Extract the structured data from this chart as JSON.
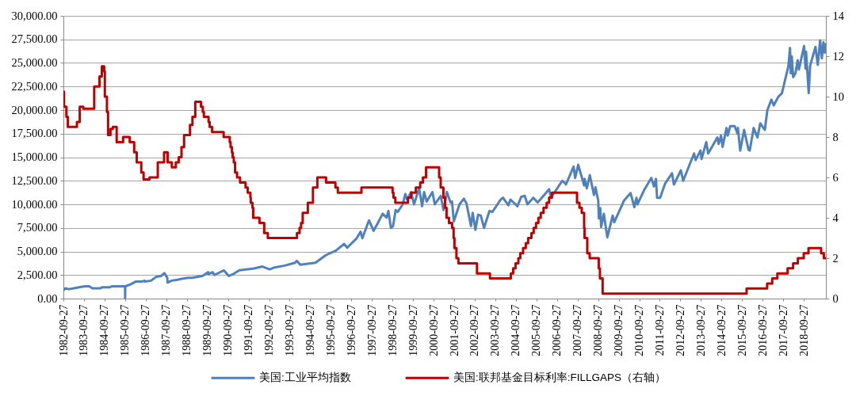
{
  "chart_data": {
    "type": "line",
    "xlim": [
      "1982-09-27",
      "2019-10-25"
    ],
    "xticks": [
      "1982-09-27",
      "1983-09-27",
      "1984-09-27",
      "1985-09-27",
      "1986-09-27",
      "1987-09-27",
      "1988-09-27",
      "1989-09-27",
      "1990-09-27",
      "1991-09-27",
      "1992-09-27",
      "1993-09-27",
      "1994-09-27",
      "1995-09-27",
      "1996-09-27",
      "1997-09-27",
      "1998-09-27",
      "1999-09-27",
      "2000-09-27",
      "2001-09-27",
      "2002-09-27",
      "2003-09-27",
      "2004-09-27",
      "2005-09-27",
      "2006-09-27",
      "2007-09-27",
      "2008-09-27",
      "2009-09-27",
      "2010-09-27",
      "2011-09-27",
      "2012-09-27",
      "2013-09-27",
      "2014-09-27",
      "2015-09-27",
      "2016-09-27",
      "2017-09-27",
      "2018-09-27"
    ],
    "ylim": [
      0,
      30000
    ],
    "yticks": [
      {
        "value": 0,
        "label": "0.00"
      },
      {
        "value": 2500,
        "label": "2,500.00"
      },
      {
        "value": 5000,
        "label": "5,000.00"
      },
      {
        "value": 7500,
        "label": "7,500.00"
      },
      {
        "value": 10000,
        "label": "10,000.00"
      },
      {
        "value": 12500,
        "label": "12,500.00"
      },
      {
        "value": 15000,
        "label": "15,000.00"
      },
      {
        "value": 17500,
        "label": "17,500.00"
      },
      {
        "value": 20000,
        "label": "20,000.00"
      },
      {
        "value": 22500,
        "label": "22,500.00"
      },
      {
        "value": 25000,
        "label": "25,000.00"
      },
      {
        "value": 27500,
        "label": "27,500.00"
      },
      {
        "value": 30000,
        "label": "30,000.00"
      }
    ],
    "y2lim": [
      0,
      14
    ],
    "y2ticks": [
      0,
      2,
      4,
      6,
      8,
      10,
      12,
      14
    ],
    "grid": "y",
    "legend": "bottom",
    "series": [
      {
        "name": "美国:工业平均指数",
        "color": "#4f81bd",
        "type": "line",
        "x": [
          "1982-09-27",
          "1982-11-03",
          "1982-12-31",
          "1983-03-31",
          "1983-06-30",
          "1983-10-10",
          "1983-12-30",
          "1984-02-22",
          "1984-05-31",
          "1984-07-24",
          "1984-08-03",
          "1984-11-06",
          "1984-12-31",
          "1985-01-31",
          "1985-06-28",
          "1985-09-26",
          "1985-09-27",
          "1985-09-30",
          "1985-12-31",
          "1986-03-31",
          "1986-07-15",
          "1986-09-04",
          "1986-09-12",
          "1986-12-31",
          "1987-03-31",
          "1987-06-30",
          "1987-08-25",
          "1987-10-16",
          "1987-10-19",
          "1987-12-31",
          "1988-04-14",
          "1988-06-30",
          "1988-10-21",
          "1988-12-30",
          "1989-06-30",
          "1989-10-09",
          "1989-10-13",
          "1989-12-29",
          "1990-01-30",
          "1990-07-16",
          "1990-10-11",
          "1990-12-31",
          "1991-04-17",
          "1991-12-31",
          "1992-06-01",
          "1992-10-09",
          "1992-12-31",
          "1993-06-30",
          "1993-12-31",
          "1994-01-31",
          "1994-04-04",
          "1994-12-30",
          "1995-06-30",
          "1995-12-29",
          "1996-05-22",
          "1996-07-16",
          "1996-12-31",
          "1997-03-11",
          "1997-04-11",
          "1997-08-06",
          "1997-10-27",
          "1997-12-31",
          "1998-04-06",
          "1998-06-15",
          "1998-07-17",
          "1998-08-31",
          "1998-10-08",
          "1998-11-23",
          "1998-12-31",
          "1999-03-29",
          "1999-05-13",
          "1999-06-14",
          "1999-08-25",
          "1999-10-15",
          "2000-01-14",
          "2000-03-07",
          "2000-04-11",
          "2000-05-26",
          "2000-09-06",
          "2000-10-18",
          "2001-01-31",
          "2001-03-22",
          "2001-05-21",
          "2001-07-24",
          "2001-08-20",
          "2001-09-21",
          "2001-12-31",
          "2002-03-19",
          "2002-05-03",
          "2002-07-23",
          "2002-08-22",
          "2002-10-09",
          "2002-11-27",
          "2003-01-14",
          "2003-03-11",
          "2003-06-17",
          "2003-08-08",
          "2003-12-31",
          "2004-02-11",
          "2004-05-17",
          "2004-06-23",
          "2004-10-25",
          "2004-12-31",
          "2005-03-04",
          "2005-04-20",
          "2005-08-02",
          "2005-10-21",
          "2005-12-30",
          "2006-05-10",
          "2006-06-13",
          "2006-12-29",
          "2007-02-27",
          "2007-03-05",
          "2007-07-19",
          "2007-08-16",
          "2007-10-09",
          "2008-01-22",
          "2008-02-01",
          "2008-03-10",
          "2008-05-02",
          "2008-07-15",
          "2008-08-11",
          "2008-09-29",
          "2008-10-10",
          "2008-11-04",
          "2008-11-20",
          "2009-01-06",
          "2009-03-09",
          "2009-06-12",
          "2009-07-10",
          "2009-12-31",
          "2010-04-26",
          "2010-07-02",
          "2010-08-09",
          "2010-08-26",
          "2010-12-31",
          "2011-04-29",
          "2011-06-15",
          "2011-07-21",
          "2011-08-10",
          "2011-10-03",
          "2011-12-30",
          "2012-05-01",
          "2012-06-04",
          "2012-10-05",
          "2012-11-15",
          "2013-05-28",
          "2013-06-24",
          "2013-09-18",
          "2013-10-08",
          "2013-12-31",
          "2014-02-03",
          "2014-07-16",
          "2014-08-07",
          "2014-09-19",
          "2014-10-16",
          "2014-12-26",
          "2015-01-15",
          "2015-03-02",
          "2015-05-19",
          "2015-07-08",
          "2015-07-16",
          "2015-08-25",
          "2015-11-03",
          "2016-01-20",
          "2016-02-11",
          "2016-04-20",
          "2016-06-27",
          "2016-08-15",
          "2016-11-04",
          "2016-12-20",
          "2017-03-01",
          "2017-04-13",
          "2017-06-30",
          "2017-09-05",
          "2017-12-29",
          "2018-01-26",
          "2018-02-08",
          "2018-02-26",
          "2018-03-23",
          "2018-05-03",
          "2018-06-11",
          "2018-07-02",
          "2018-10-03",
          "2018-10-29",
          "2018-11-07",
          "2018-12-24",
          "2019-01-18",
          "2019-04-23",
          "2019-06-03",
          "2019-07-15",
          "2019-08-14",
          "2019-09-12",
          "2019-10-02",
          "2019-10-25"
        ],
        "values": [
          900,
          1100,
          1000,
          1100,
          1200,
          1300,
          1300,
          1100,
          1100,
          1100,
          1200,
          1200,
          1200,
          1300,
          1300,
          1300,
          0,
          1300,
          1500,
          1800,
          1800,
          1900,
          1800,
          1900,
          2300,
          2400,
          2700,
          2200,
          1700,
          1900,
          2000,
          2100,
          2200,
          2200,
          2400,
          2800,
          2600,
          2800,
          2500,
          3000,
          2400,
          2600,
          3000,
          3200,
          3400,
          3100,
          3300,
          3500,
          3800,
          4000,
          3600,
          3800,
          4600,
          5100,
          5800,
          5400,
          6400,
          7100,
          6400,
          8300,
          7200,
          7900,
          9000,
          8600,
          9300,
          7500,
          7700,
          9400,
          9200,
          10000,
          11100,
          10500,
          11300,
          10000,
          11700,
          9800,
          11300,
          10300,
          11300,
          10000,
          10900,
          9400,
          11300,
          10200,
          10300,
          8200,
          10000,
          10600,
          10100,
          7700,
          9100,
          7300,
          8900,
          8800,
          7500,
          9300,
          9200,
          10500,
          10700,
          9900,
          10500,
          9800,
          10800,
          10900,
          10000,
          10700,
          10200,
          10700,
          11600,
          10700,
          12500,
          12200,
          12100,
          14000,
          12800,
          14200,
          12000,
          12700,
          11700,
          13100,
          11000,
          11800,
          10400,
          8500,
          9600,
          7600,
          9000,
          6500,
          8800,
          8100,
          10400,
          11200,
          9700,
          10700,
          10000,
          11600,
          12800,
          11900,
          12700,
          10700,
          10700,
          12200,
          13300,
          12100,
          13600,
          12500,
          15400,
          14700,
          15700,
          14800,
          16600,
          15400,
          17100,
          16400,
          17300,
          16100,
          18100,
          17300,
          18300,
          18300,
          17500,
          18100,
          15700,
          17900,
          15800,
          15700,
          18100,
          17100,
          18600,
          17900,
          20000,
          21100,
          20500,
          21400,
          21800,
          24700,
          26600,
          23900,
          25700,
          23500,
          23900,
          25300,
          24300,
          26800,
          24400,
          26200,
          21800,
          24700,
          26700,
          24800,
          27400,
          25500,
          27200,
          26100,
          27000
        ]
      },
      {
        "name": "美国:联邦基金目标利率:FILLGAPS（右轴）",
        "color": "#c00000",
        "type": "step",
        "axis": "y2",
        "x": [
          "1982-09-27",
          "1982-10-08",
          "1982-11-19",
          "1982-12-14",
          "1983-05-25",
          "1983-07-14",
          "1983-09-15",
          "1984-03-27",
          "1984-06-29",
          "1984-08-09",
          "1984-09-20",
          "1984-10-02",
          "1984-11-08",
          "1984-11-28",
          "1985-01-10",
          "1985-02-20",
          "1985-04-30",
          "1985-08-22",
          "1985-12-18",
          "1986-03-07",
          "1986-04-21",
          "1986-07-11",
          "1986-08-21",
          "1986-12-04",
          "1987-04-30",
          "1987-08-20",
          "1987-10-22",
          "1988-01-05",
          "1988-03-15",
          "1988-05-06",
          "1988-06-24",
          "1988-08-09",
          "1988-11-22",
          "1989-01-05",
          "1989-02-24",
          "1989-06-06",
          "1989-07-07",
          "1989-07-27",
          "1989-10-18",
          "1989-11-06",
          "1989-12-20",
          "1990-07-13",
          "1990-10-29",
          "1990-11-13",
          "1990-12-07",
          "1990-12-19",
          "1991-01-09",
          "1991-02-01",
          "1991-03-08",
          "1991-04-30",
          "1991-08-06",
          "1991-09-13",
          "1991-10-31",
          "1991-11-06",
          "1991-12-06",
          "1991-12-20",
          "1992-04-09",
          "1992-07-02",
          "1992-09-04",
          "1994-02-04",
          "1994-03-22",
          "1994-04-18",
          "1994-05-17",
          "1994-08-16",
          "1994-11-15",
          "1995-02-01",
          "1995-07-06",
          "1995-12-19",
          "1996-01-31",
          "1997-03-25",
          "1998-09-29",
          "1998-10-15",
          "1998-11-17",
          "1999-06-30",
          "1999-08-24",
          "1999-11-16",
          "2000-02-02",
          "2000-03-21",
          "2000-05-16",
          "2001-01-03",
          "2001-01-31",
          "2001-03-20",
          "2001-04-18",
          "2001-05-15",
          "2001-06-27",
          "2001-08-21",
          "2001-09-17",
          "2001-10-02",
          "2001-11-06",
          "2001-12-11",
          "2002-11-06",
          "2003-06-25",
          "2004-06-30",
          "2004-08-10",
          "2004-09-21",
          "2004-11-10",
          "2004-12-14",
          "2005-02-02",
          "2005-03-22",
          "2005-05-03",
          "2005-06-30",
          "2005-08-09",
          "2005-09-20",
          "2005-11-01",
          "2005-12-13",
          "2006-01-31",
          "2006-03-28",
          "2006-05-10",
          "2006-06-29",
          "2007-09-18",
          "2007-10-31",
          "2007-12-11",
          "2008-01-22",
          "2008-01-30",
          "2008-03-18",
          "2008-04-30",
          "2008-10-08",
          "2008-10-29",
          "2008-12-16",
          "2015-12-17",
          "2016-12-15",
          "2017-03-16",
          "2017-06-15",
          "2017-12-14",
          "2018-03-22",
          "2018-06-14",
          "2018-09-27",
          "2018-12-20",
          "2019-08-01",
          "2019-09-19",
          "2019-10-25"
        ],
        "values": [
          10.25,
          9.5,
          9,
          8.5,
          8.75,
          9.5,
          9.4,
          10.5,
          11,
          11.5,
          11.25,
          10,
          9.25,
          8.1,
          8.4,
          8.5,
          7.75,
          8,
          7.75,
          7.25,
          6.75,
          6.25,
          5.9,
          6,
          6.75,
          7.25,
          6.75,
          6.5,
          6.75,
          7,
          7.5,
          8.1,
          8.6,
          9,
          9.75,
          9.5,
          9.25,
          9,
          8.75,
          8.5,
          8.25,
          8,
          7.75,
          7.5,
          7.25,
          7,
          6.75,
          6.25,
          6,
          5.75,
          5.5,
          5.25,
          5,
          4.75,
          4.5,
          4,
          3.75,
          3.25,
          3,
          3.25,
          3.5,
          3.75,
          4.25,
          4.75,
          5.5,
          6,
          5.75,
          5.5,
          5.25,
          5.5,
          5.25,
          5,
          4.75,
          5,
          5.25,
          5.5,
          5.75,
          6,
          6.5,
          6,
          5.5,
          5,
          4.5,
          4,
          3.75,
          3.5,
          3,
          2.5,
          2,
          1.75,
          1.25,
          1,
          1.25,
          1.5,
          1.75,
          2,
          2.25,
          2.5,
          2.75,
          3,
          3.25,
          3.5,
          3.75,
          4,
          4.25,
          4.5,
          4.75,
          5,
          5.25,
          4.75,
          4.5,
          4.25,
          3.5,
          3,
          2.25,
          2,
          1.5,
          1,
          0.25,
          0.5,
          0.75,
          1,
          1.25,
          1.5,
          1.75,
          2,
          2.25,
          2.5,
          2.25,
          2,
          2
        ]
      }
    ]
  }
}
